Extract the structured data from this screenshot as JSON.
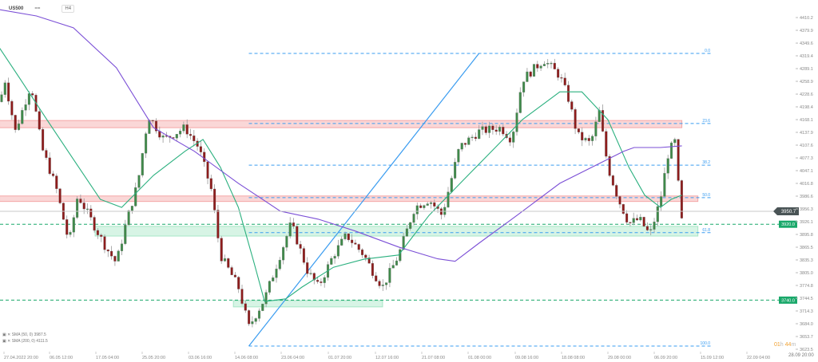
{
  "header": {
    "symbol": "US500",
    "type_label": "==",
    "interval": "H4"
  },
  "legend": [
    {
      "label": "SMA (50, 0) 3987.5",
      "color": "#2bb07f"
    },
    {
      "label": "SMA (200, 0) 4111.5",
      "color": "#7b4fd6"
    }
  ],
  "countdown": {
    "hours": "01",
    "h": "h",
    "minutes": "44",
    "m": "m"
  },
  "last_date_label": "28.09 20:00",
  "chart_data": {
    "type": "candlestick",
    "title": "",
    "grid": false,
    "y_ticks": [
      "4410.2",
      "4379.9",
      "4349.6",
      "4319.4",
      "4289.1",
      "4258.9",
      "4228.6",
      "4198.4",
      "4168.1",
      "4137.9",
      "4107.6",
      "4077.3",
      "4047.1",
      "4016.8",
      "3986.6",
      "3956.3",
      "3926.1",
      "3895.8",
      "3865.5",
      "3835.3",
      "3805.0",
      "3774.8",
      "3744.5",
      "3714.3",
      "3684.0",
      "3653.7",
      "3623.5"
    ],
    "ylim": [
      3623.5,
      4410.2
    ],
    "x_ticks": [
      "27.04.2022  20:00",
      "06.05  12:00",
      "17.05  04:00",
      "25.05  20:00",
      "03.06  16:00",
      "14.06  08:00",
      "23.06  04:00",
      "01.07  20:00",
      "12.07  16:00",
      "21.07  08:00",
      "01.08  00:00",
      "09.08  16:00",
      "18.08  08:00",
      "29.08  00:00",
      "06.09  20:00",
      "15.09  12:00",
      "22.09  04:00"
    ],
    "price_path": [
      [
        "27.04",
        4206
      ],
      [
        "28.04",
        4263
      ],
      [
        "30.04",
        4140
      ],
      [
        "03.05",
        4253
      ],
      [
        "05.05",
        4102
      ],
      [
        "08.05",
        4007
      ],
      [
        "11.05",
        3875
      ],
      [
        "13.05",
        3989
      ],
      [
        "19.05",
        3866
      ],
      [
        "21.05",
        3828
      ],
      [
        "23.05",
        3932
      ],
      [
        "25.05",
        4017
      ],
      [
        "27.05",
        4178
      ],
      [
        "30.05",
        4121
      ],
      [
        "03.06",
        4149
      ],
      [
        "06.06",
        4102
      ],
      [
        "09.06",
        3998
      ],
      [
        "11.06",
        3847
      ],
      [
        "15.06",
        3771
      ],
      [
        "17.06",
        3676
      ],
      [
        "20.06",
        3743
      ],
      [
        "24.06",
        3885
      ],
      [
        "25.06",
        3922
      ],
      [
        "28.06",
        3809
      ],
      [
        "30.06",
        3771
      ],
      [
        "03.07",
        3847
      ],
      [
        "06.07",
        3894
      ],
      [
        "10.07",
        3847
      ],
      [
        "12.07",
        3809
      ],
      [
        "14.07",
        3771
      ],
      [
        "17.07",
        3847
      ],
      [
        "20.07",
        3960
      ],
      [
        "23.07",
        3979
      ],
      [
        "26.07",
        3941
      ],
      [
        "30.07",
        4102
      ],
      [
        "03.08",
        4140
      ],
      [
        "07.08",
        4149
      ],
      [
        "09.08",
        4121
      ],
      [
        "11.08",
        4263
      ],
      [
        "15.08",
        4310
      ],
      [
        "18.08",
        4272
      ],
      [
        "20.08",
        4215
      ],
      [
        "22.08",
        4130
      ],
      [
        "25.08",
        4111
      ],
      [
        "27.08",
        4187
      ],
      [
        "29.08",
        4055
      ],
      [
        "31.08",
        3979
      ],
      [
        "02.09",
        3922
      ],
      [
        "04.09",
        3932
      ],
      [
        "06.09",
        3894
      ],
      [
        "08.09",
        3979
      ],
      [
        "09.09 12:00",
        4092
      ],
      [
        "11.09",
        4121
      ],
      [
        "11.09 12:00",
        3960
      ],
      [
        "12.09",
        3926
      ]
    ],
    "series": [
      {
        "name": "SMA (50, 0)",
        "color": "#2bb07f",
        "values": [
          [
            "27.04",
            4338
          ],
          [
            "01.05",
            4263
          ],
          [
            "06.05",
            4168
          ],
          [
            "12.05",
            4074
          ],
          [
            "18.05",
            3979
          ],
          [
            "22.05",
            3960
          ],
          [
            "28.05",
            4036
          ],
          [
            "03.06",
            4093
          ],
          [
            "07.06",
            4121
          ],
          [
            "11.06",
            4055
          ],
          [
            "15.06",
            3960
          ],
          [
            "18.06",
            3828
          ],
          [
            "20.06",
            3737
          ],
          [
            "24.06",
            3743
          ],
          [
            "27.06",
            3771
          ],
          [
            "03.07",
            3818
          ],
          [
            "10.07",
            3837
          ],
          [
            "17.07",
            3847
          ],
          [
            "23.07",
            3941
          ],
          [
            "31.07",
            4026
          ],
          [
            "06.08",
            4102
          ],
          [
            "11.08",
            4168
          ],
          [
            "18.08",
            4234
          ],
          [
            "23.08",
            4234
          ],
          [
            "29.08",
            4168
          ],
          [
            "02.09",
            4055
          ],
          [
            "05.09",
            3989
          ],
          [
            "08.09",
            3960
          ],
          [
            "10.09",
            3979
          ],
          [
            "12.09",
            3989
          ]
        ]
      },
      {
        "name": "SMA (200, 0)",
        "color": "#7b4fd6",
        "values": [
          [
            "27.04",
            4429
          ],
          [
            "04.05",
            4414
          ],
          [
            "12.05",
            4386
          ],
          [
            "21.05",
            4291
          ],
          [
            "28.05",
            4149
          ],
          [
            "05.06",
            4093
          ],
          [
            "15.06",
            4017
          ],
          [
            "23.06",
            3951
          ],
          [
            "30.06",
            3932
          ],
          [
            "08.07",
            3904
          ],
          [
            "17.07",
            3866
          ],
          [
            "25.07",
            3838
          ],
          [
            "29.07",
            3832
          ],
          [
            "03.08",
            3875
          ],
          [
            "10.08",
            3941
          ],
          [
            "18.08",
            4017
          ],
          [
            "27.08",
            4064
          ],
          [
            "01.09",
            4093
          ],
          [
            "03.09",
            4102
          ],
          [
            "08.09",
            4102
          ],
          [
            "12.09",
            4106
          ]
        ]
      }
    ],
    "current_price": {
      "value": "3950.7",
      "color": "#4a5456"
    },
    "zones": [
      {
        "kind": "resistance",
        "from": 4149,
        "to": 4166,
        "color": "#f4a6a6",
        "start": "27.04",
        "end": "12.09"
      },
      {
        "kind": "resistance",
        "from": 3974,
        "to": 3987,
        "color": "#f4a6a6",
        "start": "27.04",
        "end": "15.09"
      },
      {
        "kind": "support",
        "from": 3892,
        "to": 3915,
        "color": "#a6e6c6",
        "start": "17.05",
        "end": "15.09"
      },
      {
        "kind": "support",
        "from": 3724,
        "to": 3739,
        "color": "#a6e6c6",
        "start": "14.06",
        "end": "14.07"
      }
    ],
    "levels": [
      {
        "value": "3920.0",
        "color": "#19a86a"
      },
      {
        "value": "3740.0",
        "color": "#19a86a"
      }
    ],
    "fibonacci": {
      "color": "#3a9cf0",
      "start": "17.06",
      "end": "17.09",
      "levels": [
        [
          "0.0",
          4325
        ],
        [
          "23.6",
          4159
        ],
        [
          "38.2",
          4060
        ],
        [
          "50.0",
          3983
        ],
        [
          "61.8",
          3900
        ],
        [
          "100.0",
          3631
        ]
      ]
    },
    "trendline": {
      "from": [
        "17.06",
        3631
      ],
      "to": [
        "03.08",
        4325
      ],
      "color": "#3a9cf0"
    }
  }
}
